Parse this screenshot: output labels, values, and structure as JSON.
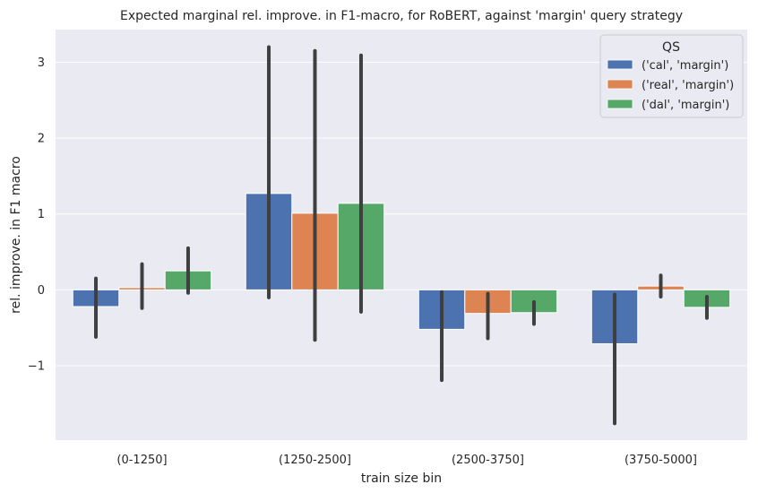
{
  "chart_data": {
    "type": "bar",
    "title": "Expected marginal rel. improve. in F1-macro, for RoBERT, against 'margin' query strategy",
    "xlabel": "train size bin",
    "ylabel": "rel. improve. in F1 macro",
    "categories": [
      "(0-1250]",
      "(1250-2500]",
      "(2500-3750]",
      "(3750-5000]"
    ],
    "ylim": [
      -1.98,
      3.43
    ],
    "yticks": [
      -1,
      0,
      1,
      2,
      3
    ],
    "ytick_labels": [
      "−1",
      "0",
      "1",
      "2",
      "3"
    ],
    "grid": true,
    "legend": {
      "title": "QS",
      "position": "top-right"
    },
    "series": [
      {
        "name": "('cal', 'margin')",
        "color": "#4c72b0",
        "values": [
          -0.22,
          1.27,
          -0.52,
          -0.71
        ],
        "err_low": [
          -0.62,
          -0.1,
          -1.19,
          -1.76
        ],
        "err_high": [
          0.15,
          3.2,
          -0.03,
          -0.06
        ]
      },
      {
        "name": "('real', 'margin')",
        "color": "#dd8452",
        "values": [
          0.03,
          1.01,
          -0.31,
          0.05
        ],
        "err_low": [
          -0.24,
          -0.66,
          -0.64,
          -0.09
        ],
        "err_high": [
          0.34,
          3.15,
          -0.05,
          0.19
        ]
      },
      {
        "name": "('dal', 'margin')",
        "color": "#55a868",
        "values": [
          0.25,
          1.14,
          -0.3,
          -0.23
        ],
        "err_low": [
          -0.04,
          -0.29,
          -0.45,
          -0.37
        ],
        "err_high": [
          0.55,
          3.09,
          -0.16,
          -0.09
        ]
      }
    ]
  },
  "colors": {
    "plot_background": "#eaeaf2",
    "grid": "#ffffff",
    "error_bar": "#3f3f3f"
  }
}
